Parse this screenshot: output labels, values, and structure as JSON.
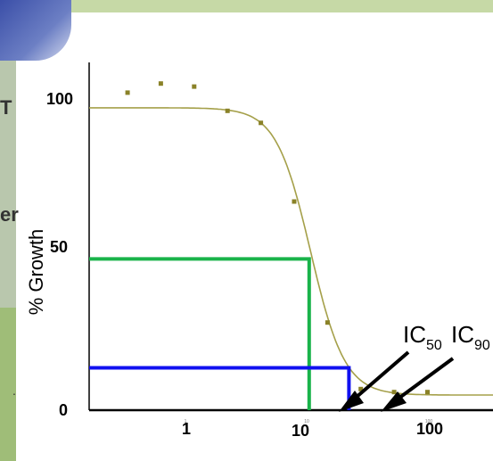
{
  "chart_data": {
    "type": "scatter",
    "ylabel": "% Growth",
    "y_ticks": [
      "0",
      "50",
      "100"
    ],
    "x_ticks": [
      "1",
      "10",
      "100"
    ],
    "x_ticks_small": [
      "1",
      "10",
      "100"
    ],
    "x_scale": "log",
    "xlim": [
      0.18,
      800
    ],
    "ylim": [
      0,
      115
    ],
    "points": [
      {
        "x": 0.4,
        "y": 105
      },
      {
        "x": 0.8,
        "y": 108
      },
      {
        "x": 1.6,
        "y": 107
      },
      {
        "x": 3.2,
        "y": 99
      },
      {
        "x": 6.4,
        "y": 95
      },
      {
        "x": 12.8,
        "y": 69
      },
      {
        "x": 25.6,
        "y": 29
      },
      {
        "x": 51.2,
        "y": 7
      },
      {
        "x": 102.4,
        "y": 6
      },
      {
        "x": 204.8,
        "y": 6
      }
    ],
    "fit_curve": {
      "top": 100,
      "bottom": 5,
      "ec50": 18,
      "hill": 2.8
    },
    "ic50": {
      "label_main": "IC",
      "label_sub": "50",
      "x": 17.5,
      "y": 50,
      "color": "#19b34a"
    },
    "ic90": {
      "label_main": "IC",
      "label_sub": "90",
      "x": 40,
      "y": 14,
      "color": "#1010f0"
    },
    "colors": {
      "points": "#8a8228",
      "curve": "#a5a04a",
      "axis": "#000000"
    }
  },
  "background": {
    "text_1": "T",
    "text_2": "er",
    "dot": "."
  }
}
